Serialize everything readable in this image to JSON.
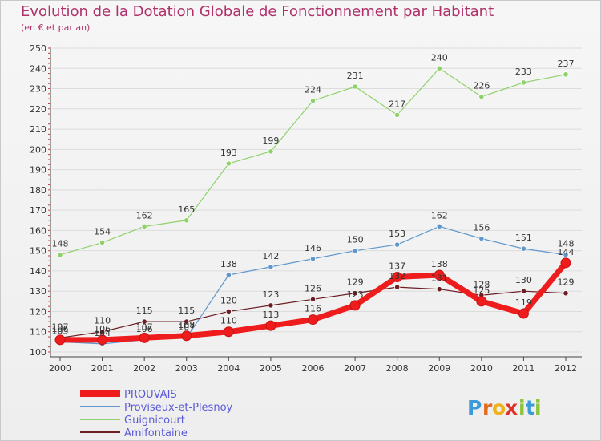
{
  "chart_data": {
    "type": "line",
    "title": "Evolution de la Dotation Globale de Fonctionnement par Habitant",
    "subtitle": "(en € et par an)",
    "categories": [
      "2000",
      "2001",
      "2002",
      "2003",
      "2004",
      "2005",
      "2006",
      "2007",
      "2008",
      "2009",
      "2010",
      "2011",
      "2012"
    ],
    "ylim": [
      100,
      250
    ],
    "yticks": [
      100,
      110,
      120,
      130,
      140,
      150,
      160,
      170,
      180,
      190,
      200,
      210,
      220,
      230,
      240,
      250
    ],
    "series": [
      {
        "name": "Guignicourt",
        "color": "#8fd16a",
        "width": 1.2,
        "marker": 3.2,
        "values": [
          148,
          154,
          162,
          165,
          193,
          199,
          224,
          231,
          217,
          240,
          226,
          233,
          237
        ],
        "labels": [
          "148",
          "154",
          "162",
          "165",
          "193",
          "199",
          "224",
          "231",
          "217",
          "240",
          "226",
          "233",
          "237"
        ]
      },
      {
        "name": "Proviseux-et-Plesnoy",
        "color": "#5f97cc",
        "width": 1.2,
        "marker": 3.2,
        "values": [
          105,
          104,
          106,
          107,
          138,
          142,
          146,
          150,
          153,
          162,
          156,
          151,
          148
        ],
        "labels": [
          "105",
          "104",
          "106",
          "107",
          "138",
          "142",
          "146",
          "150",
          "153",
          "162",
          "156",
          "151",
          "148"
        ]
      },
      {
        "name": "Amifontaine",
        "color": "#6b1e24",
        "width": 1.2,
        "marker": 3.2,
        "values": [
          107,
          110,
          115,
          115,
          120,
          123,
          126,
          129,
          132,
          131,
          128,
          130,
          129
        ],
        "labels": [
          "107",
          "110",
          "115",
          "115",
          "120",
          "123",
          "126",
          "129",
          "132",
          "131",
          "128",
          "130",
          "129"
        ]
      },
      {
        "name": "PROUVAIS",
        "color": "#ee1c1c",
        "width": 7,
        "marker": 6,
        "values": [
          106,
          106,
          107,
          108,
          110,
          113,
          116,
          123,
          137,
          138,
          125,
          119,
          144
        ],
        "labels": [
          "106",
          "106",
          "107",
          "108",
          "110",
          "113",
          "116",
          "123",
          "137",
          "138",
          "125",
          "119",
          "144"
        ]
      }
    ],
    "legend_order": [
      "PROUVAIS",
      "Proviseux-et-Plesnoy",
      "Guignicourt",
      "Amifontaine"
    ]
  },
  "brand": {
    "letters": [
      "P",
      "r",
      "o",
      "x",
      "i",
      "t",
      "i"
    ],
    "colors": [
      "#3a9bd8",
      "#e56b1f",
      "#f0b21a",
      "#e0312b",
      "#8cc43c",
      "#3a9bd8",
      "#8cc43c"
    ]
  }
}
